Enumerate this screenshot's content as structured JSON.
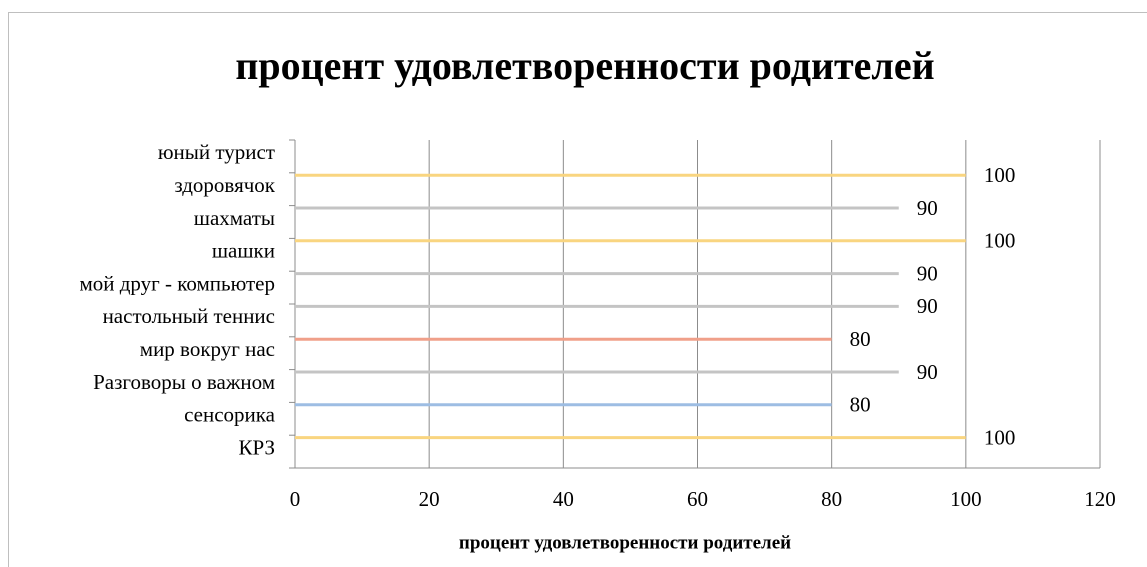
{
  "chart_data": {
    "type": "bar",
    "orientation": "horizontal",
    "title": "процент удовлетворенности родителей",
    "xlabel": "процент удовлетворенности  родителей",
    "categories": [
      "юный турист",
      "здоровячок",
      "шахматы ",
      "шашки ",
      "мой друг - компьютер ",
      "настольный теннис ",
      "мир вокруг нас ",
      "Разговоры о важном ",
      "сенсорика",
      "КРЗ"
    ],
    "values": [
      null,
      100,
      90,
      100,
      90,
      90,
      80,
      90,
      80,
      100
    ],
    "colors": [
      null,
      "#f9d580",
      "#c4c4c4",
      "#f9d580",
      "#c4c4c4",
      "#c4c4c4",
      "#f0a08a",
      "#c4c4c4",
      "#9dbde3",
      "#f9d580"
    ],
    "xlim": [
      0,
      120
    ],
    "xticks": [
      0,
      20,
      40,
      60,
      80,
      100,
      120
    ],
    "grid": true
  }
}
